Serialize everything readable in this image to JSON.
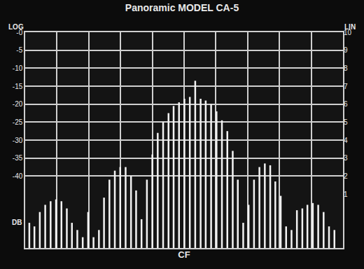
{
  "chart_data": {
    "type": "stem",
    "title": "Panoramic MODEL CA-5",
    "xlabel": "CF",
    "ylabel": "LOG",
    "y2label": "LIN",
    "annotations": [
      "DB"
    ],
    "x": [
      1.3,
      2.9,
      4.6,
      6.3,
      8.0,
      9.7,
      11.4,
      13.1,
      14.7,
      16.4,
      18.1,
      19.8,
      21.5,
      23.2,
      24.8,
      26.5,
      28.2,
      29.9,
      31.6,
      33.3,
      34.9,
      36.6,
      38.3,
      40.0,
      41.7,
      43.4,
      45.1,
      46.7,
      48.4,
      50.1,
      51.8,
      53.5,
      55.2,
      56.8,
      58.5,
      60.2,
      61.9,
      63.6,
      65.3,
      66.9,
      68.6,
      70.3,
      72.0,
      73.7,
      75.4,
      77.1,
      78.7,
      80.4,
      82.1,
      83.8,
      85.5,
      87.2,
      88.8,
      90.5,
      92.2,
      93.9,
      95.6,
      97.3
    ],
    "values": [
      -53,
      -54,
      -50,
      -48,
      -47,
      -46.5,
      -47,
      -49,
      -53,
      -55,
      -57,
      -50,
      -57,
      -55,
      -46,
      -41,
      -38.5,
      -37.5,
      -37.5,
      -40,
      -44,
      -52,
      -41,
      -34,
      -28,
      -25,
      -22.5,
      -20.5,
      -19.5,
      -18.5,
      -18,
      -13.5,
      -18.5,
      -19,
      -20,
      -22,
      -24.5,
      -27.5,
      -33,
      -41,
      -53,
      -48,
      -41,
      -37.5,
      -36.5,
      -37,
      -41.5,
      -45.5,
      -54,
      -55,
      -49.5,
      -49,
      -48,
      -47.5,
      -48,
      -50,
      -54,
      -55
    ],
    "color": "#f2f2f2",
    "xlim": [
      0,
      100
    ],
    "xticks": [
      0,
      10,
      20,
      30,
      40,
      50,
      60,
      70,
      80,
      90,
      100
    ],
    "ylim": [
      -60,
      0
    ],
    "yticks": [
      {
        "value": 0,
        "label": "-0"
      },
      -5,
      -10,
      -15,
      -20,
      -25,
      -30,
      -35,
      -40
    ],
    "y2lim": [
      -2,
      10
    ],
    "y2ticks": [
      1,
      2,
      3,
      4,
      5,
      6,
      7,
      8,
      9,
      10
    ],
    "grid": true,
    "tick_labels": "y"
  }
}
